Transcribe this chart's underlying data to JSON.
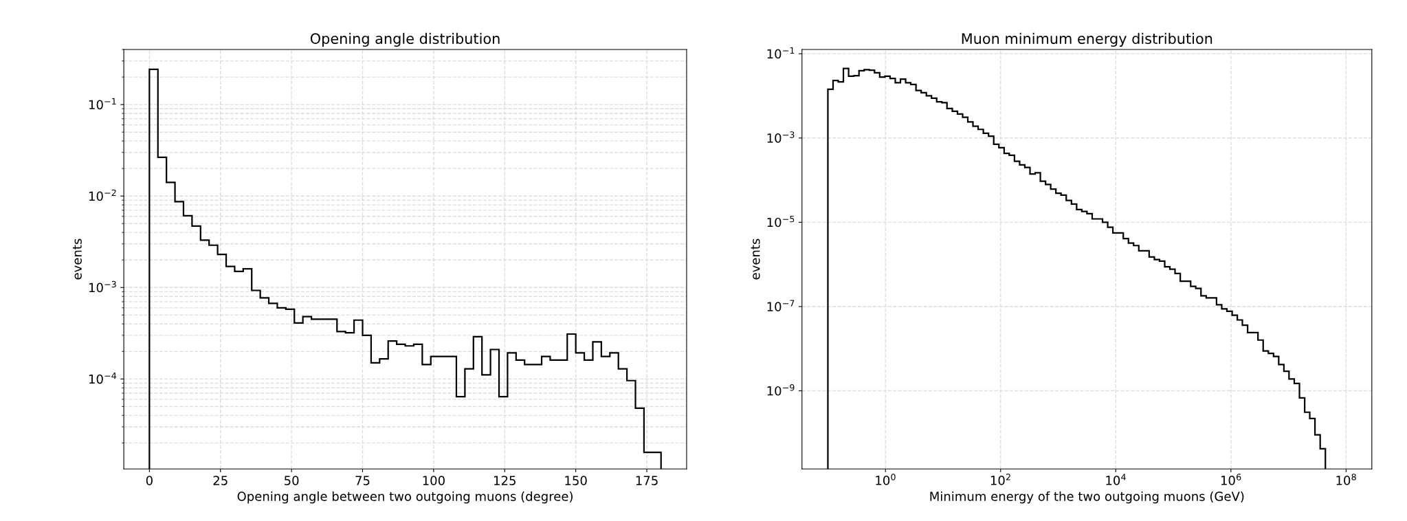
{
  "chart_data": [
    {
      "type": "histogram",
      "title": "Opening angle distribution",
      "xlabel": "Opening angle between two outgoing muons (degree)",
      "ylabel": "events",
      "log": "y",
      "grid": true,
      "color": "#000000",
      "bins": [
        0,
        3,
        6,
        9,
        12,
        15,
        18,
        21,
        24,
        27,
        30,
        33,
        36,
        39,
        42,
        45,
        48,
        51,
        54,
        57,
        60,
        63,
        66,
        69,
        72,
        75,
        78,
        81,
        84,
        87,
        90,
        93,
        96,
        99,
        102,
        105,
        108,
        111,
        114,
        117,
        120,
        123,
        126,
        129,
        132,
        135,
        138,
        141,
        144,
        147,
        150,
        153,
        156,
        159,
        162,
        165,
        168,
        171,
        174,
        177,
        180
      ],
      "values": [
        0.243,
        0.0265,
        0.0141,
        0.0087,
        0.0061,
        0.0047,
        0.0033,
        0.0029,
        0.0023,
        0.0017,
        0.0015,
        0.0016,
        0.00093,
        0.00077,
        0.00067,
        0.0006,
        0.00058,
        0.00041,
        0.00048,
        0.00045,
        0.00045,
        0.00045,
        0.00033,
        0.00032,
        0.00044,
        0.0003,
        0.00015,
        0.000166,
        0.00026,
        0.00024,
        0.00023,
        0.00024,
        0.000144,
        0.000176,
        0.000176,
        0.000176,
        6.4e-05,
        0.000129,
        0.00029,
        0.000111,
        0.00021,
        6.4e-05,
        0.000193,
        0.000161,
        0.000144,
        0.000144,
        0.000176,
        0.000161,
        0.000161,
        0.00031,
        0.000193,
        0.000161,
        0.000255,
        0.000176,
        0.000193,
        0.000129,
        9.6e-05,
        4.8e-05,
        1.58e-05,
        1.58e-05
      ],
      "xlim": [
        -9,
        189
      ],
      "ylim": [
        1.04e-05,
        0.4
      ],
      "xticks": [
        0,
        25,
        50,
        75,
        100,
        125,
        150,
        175
      ],
      "yticks": [
        {
          "value": 0.0001,
          "label": "10$^{−4}$"
        },
        {
          "value": 0.001,
          "label": "10$^{−3}$"
        },
        {
          "value": 0.01,
          "label": "10$^{−2}$"
        },
        {
          "value": 0.1,
          "label": "10$^{−1}$"
        }
      ]
    },
    {
      "type": "histogram",
      "title": "Muon minimum energy distribution",
      "xlabel": "Minimum energy of the two outgoing muons (GeV)",
      "ylabel": "events",
      "log": "xy",
      "grid": true,
      "color": "#000000",
      "bins": [
        0.1,
        0.123,
        0.151,
        0.186,
        0.229,
        0.282,
        0.347,
        0.427,
        0.525,
        0.646,
        0.794,
        0.977,
        1.2,
        1.48,
        1.82,
        2.24,
        2.75,
        3.39,
        4.17,
        5.13,
        6.31,
        7.76,
        9.55,
        11.7,
        14.5,
        17.8,
        21.9,
        26.9,
        33.1,
        40.7,
        50.1,
        61.7,
        75.9,
        93.3,
        115,
        141,
        174,
        214,
        263,
        324,
        398,
        490,
        603,
        741,
        912,
        1120,
        1380,
        1700,
        2090,
        2570,
        3160,
        3890,
        4790,
        5890,
        7240,
        8910,
        11000.0,
        13500.0,
        16600.0,
        20400.0,
        25100.0,
        30900.0,
        38000.0,
        46800.0,
        57500.0,
        70800.0,
        87100.0,
        107000.0,
        132000.0,
        162000.0,
        200000.0,
        245000.0,
        302000.0,
        372000.0,
        457000.0,
        562000.0,
        692000.0,
        851000.0,
        1050000.0,
        1290000.0,
        1580000.0,
        1950000.0,
        2400000.0,
        2950000.0,
        3630000.0,
        4470000.0,
        5500000.0,
        6760000.0,
        8320000.0,
        10200000.0,
        12600000.0,
        15500000.0,
        19100000.0,
        23400000.0,
        28800000.0,
        35500000.0,
        43700000.0
      ],
      "values": [
        0.0143,
        0.0232,
        0.0214,
        0.0446,
        0.0293,
        0.0302,
        0.0394,
        0.0419,
        0.0406,
        0.0353,
        0.0279,
        0.0292,
        0.0258,
        0.0205,
        0.025,
        0.0205,
        0.0186,
        0.0134,
        0.0119,
        0.01,
        0.0088,
        0.0072,
        0.0069,
        0.005,
        0.0043,
        0.0037,
        0.0031,
        0.0024,
        0.0019,
        0.0016,
        0.0013,
        0.0011,
        0.00071,
        0.00059,
        0.00043,
        0.00039,
        0.00028,
        0.00023,
        0.0002,
        0.00014,
        0.00015,
        9.4e-05,
        7.9e-05,
        6.1e-05,
        4.9e-05,
        4.4e-05,
        3.3e-05,
        2.7e-05,
        2e-05,
        1.8e-05,
        1.6e-05,
        1.2e-05,
        1.2e-05,
        1e-05,
        7.6e-06,
        5.6e-06,
        5.6e-06,
        4.1e-06,
        3.2e-06,
        2.8e-06,
        2.1e-06,
        2.1e-06,
        1.5e-06,
        1.3e-06,
        1.2e-06,
        8.8e-07,
        7.7e-07,
        6.1e-07,
        4e-07,
        4e-07,
        3e-07,
        2.7e-07,
        1.8e-07,
        1.6e-07,
        1.6e-07,
        1.1e-07,
        8.8e-08,
        7.7e-08,
        6.2e-08,
        4.8e-08,
        3.6e-08,
        2.4e-08,
        2.4e-08,
        1.6e-08,
        8.8e-09,
        7.7e-09,
        6.5e-09,
        4.2e-09,
        2.9e-09,
        1.9e-09,
        1.5e-09,
        6.8e-10,
        3.1e-10,
        2.2e-10,
        9e-11,
        4.2e-11
      ],
      "xlim": [
        0.0355,
        280000000.0
      ],
      "ylim": [
        1.4e-11,
        0.126
      ],
      "xticks": [
        {
          "value": 1,
          "label": "10$^{0}$"
        },
        {
          "value": 100,
          "label": "10$^{2}$"
        },
        {
          "value": 10000,
          "label": "10$^{4}$"
        },
        {
          "value": 1000000,
          "label": "10$^{6}$"
        },
        {
          "value": 100000000,
          "label": "10$^{8}$"
        }
      ],
      "yticks": [
        {
          "value": 1e-09,
          "label": "10$^{−9}$"
        },
        {
          "value": 1e-07,
          "label": "10$^{−7}$"
        },
        {
          "value": 1e-05,
          "label": "10$^{−5}$"
        },
        {
          "value": 0.001,
          "label": "10$^{−3}$"
        },
        {
          "value": 0.1,
          "label": "10$^{−1}$"
        }
      ]
    }
  ]
}
